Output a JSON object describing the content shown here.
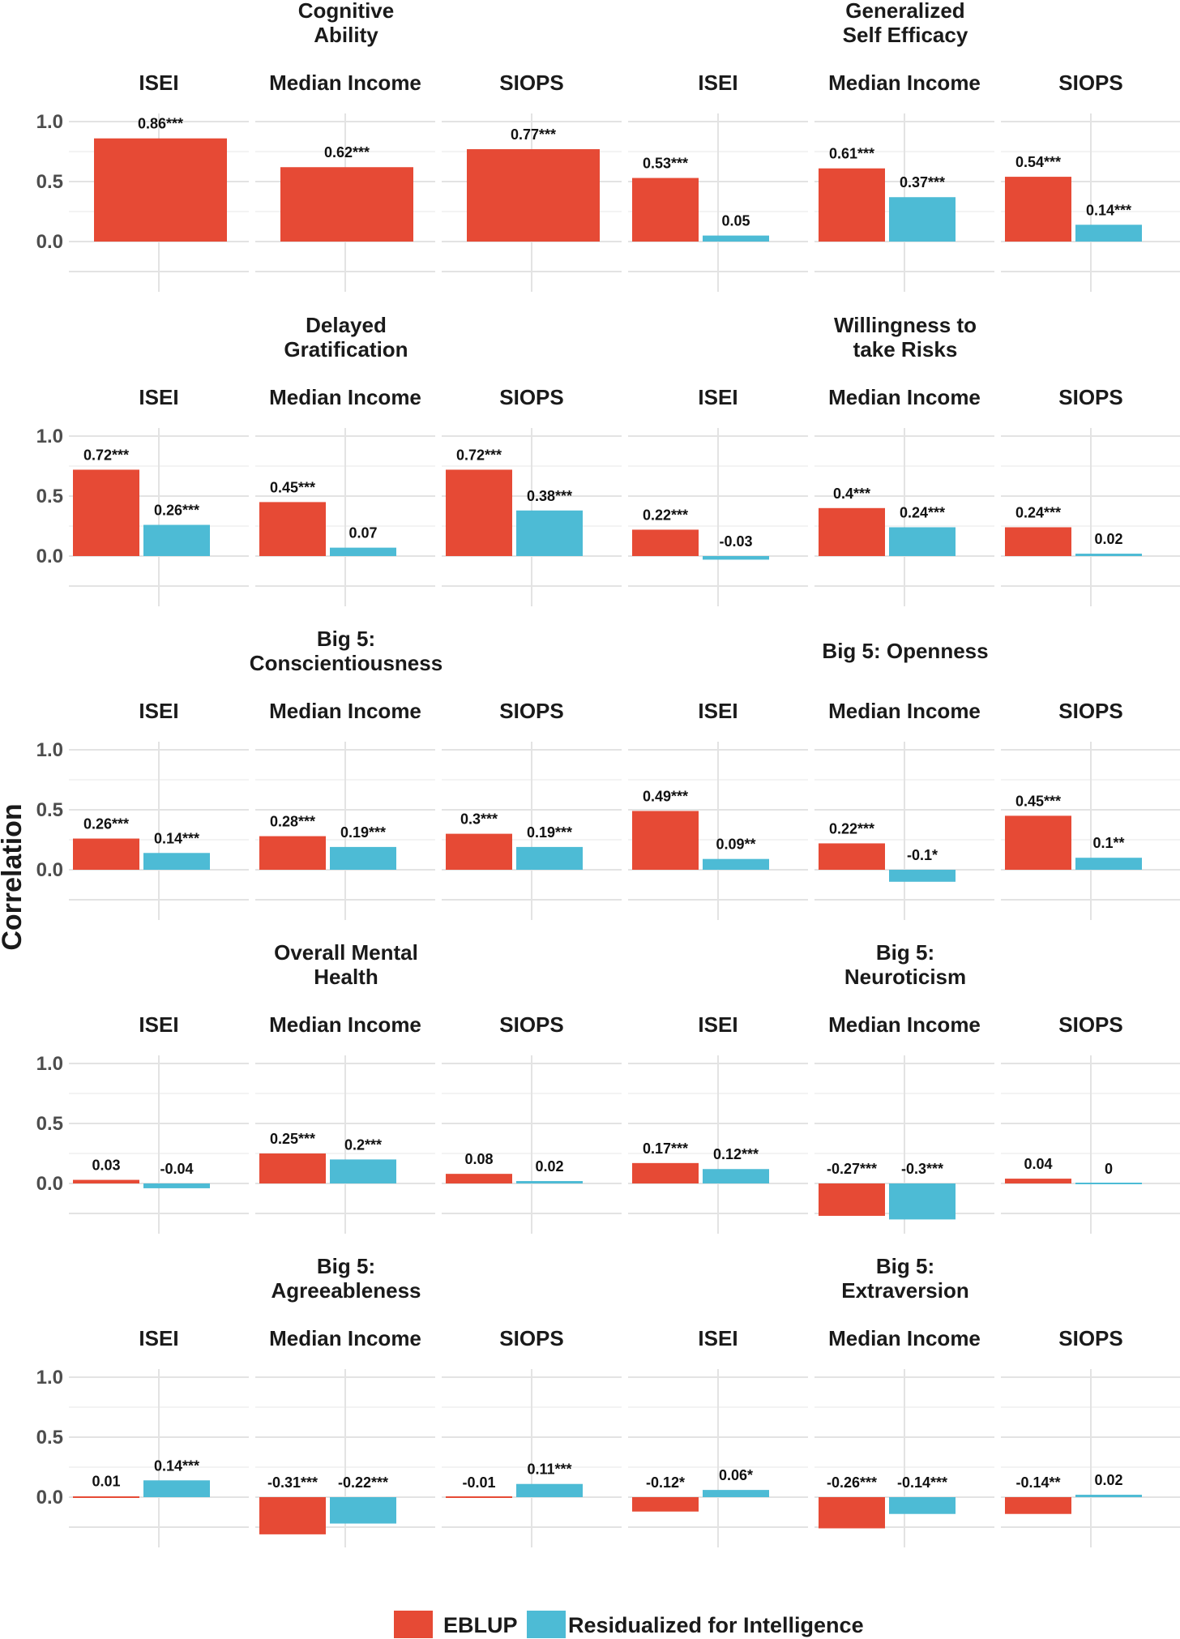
{
  "chart_data": {
    "type": "bar",
    "ylabel": "Correlation",
    "ylim": [
      -0.25,
      1.0
    ],
    "yticks": [
      "0.0",
      "0.5",
      "1.0"
    ],
    "grid": true,
    "legend": {
      "position": "bottom",
      "entries": [
        {
          "name": "EBLUP",
          "color": "#E64A35"
        },
        {
          "name": "Residualized for Intelligence",
          "color": "#4DBBD5"
        }
      ]
    },
    "colors": {
      "EBLUP": "#E64A35",
      "Residualized": "#4DBBD5"
    },
    "subpanels": [
      "ISEI",
      "Median Income",
      "SIOPS"
    ],
    "panels": [
      {
        "title": [
          "Cognitive",
          "Ability"
        ],
        "eblup": [
          0.86,
          0.62,
          0.77
        ],
        "eblup_labels": [
          "0.86***",
          "0.62***",
          "0.77***"
        ],
        "resid": null,
        "resid_labels": null
      },
      {
        "title": [
          "Generalized",
          "Self Efficacy"
        ],
        "eblup": [
          0.53,
          0.61,
          0.54
        ],
        "eblup_labels": [
          "0.53***",
          "0.61***",
          "0.54***"
        ],
        "resid": [
          0.05,
          0.37,
          0.14
        ],
        "resid_labels": [
          "0.05",
          "0.37***",
          "0.14***"
        ]
      },
      {
        "title": [
          "Delayed",
          "Gratification"
        ],
        "eblup": [
          0.72,
          0.45,
          0.72
        ],
        "eblup_labels": [
          "0.72***",
          "0.45***",
          "0.72***"
        ],
        "resid": [
          0.26,
          0.07,
          0.38
        ],
        "resid_labels": [
          "0.26***",
          "0.07",
          "0.38***"
        ]
      },
      {
        "title": [
          "Willingness to",
          "take Risks"
        ],
        "eblup": [
          0.22,
          0.4,
          0.24
        ],
        "eblup_labels": [
          "0.22***",
          "0.4***",
          "0.24***"
        ],
        "resid": [
          -0.03,
          0.24,
          0.02
        ],
        "resid_labels": [
          "-0.03",
          "0.24***",
          "0.02"
        ]
      },
      {
        "title": [
          "Big 5:",
          "Conscientiousness"
        ],
        "eblup": [
          0.26,
          0.28,
          0.3
        ],
        "eblup_labels": [
          "0.26***",
          "0.28***",
          "0.3***"
        ],
        "resid": [
          0.14,
          0.19,
          0.19
        ],
        "resid_labels": [
          "0.14***",
          "0.19***",
          "0.19***"
        ]
      },
      {
        "title": [
          "Big 5: Openness"
        ],
        "eblup": [
          0.49,
          0.22,
          0.45
        ],
        "eblup_labels": [
          "0.49***",
          "0.22***",
          "0.45***"
        ],
        "resid": [
          0.09,
          -0.1,
          0.1
        ],
        "resid_labels": [
          "0.09**",
          "-0.1*",
          "0.1**"
        ]
      },
      {
        "title": [
          "Overall Mental",
          "Health"
        ],
        "eblup": [
          0.03,
          0.25,
          0.08
        ],
        "eblup_labels": [
          "0.03",
          "0.25***",
          "0.08"
        ],
        "resid": [
          -0.04,
          0.2,
          0.02
        ],
        "resid_labels": [
          "-0.04",
          "0.2***",
          "0.02"
        ]
      },
      {
        "title": [
          "Big 5:",
          "Neuroticism"
        ],
        "eblup": [
          0.17,
          -0.27,
          0.04
        ],
        "eblup_labels": [
          "0.17***",
          "-0.27***",
          "0.04"
        ],
        "resid": [
          0.12,
          -0.3,
          0.0
        ],
        "resid_labels": [
          "0.12***",
          "-0.3***",
          "0"
        ]
      },
      {
        "title": [
          "Big 5:",
          "Agreeableness"
        ],
        "eblup": [
          0.01,
          -0.31,
          -0.01
        ],
        "eblup_labels": [
          "0.01",
          "-0.31***",
          "-0.01"
        ],
        "resid": [
          0.14,
          -0.22,
          0.11
        ],
        "resid_labels": [
          "0.14***",
          "-0.22***",
          "0.11***"
        ]
      },
      {
        "title": [
          "Big 5:",
          "Extraversion"
        ],
        "eblup": [
          -0.12,
          -0.26,
          -0.14
        ],
        "eblup_labels": [
          "-0.12*",
          "-0.26***",
          "-0.14**"
        ],
        "resid": [
          0.06,
          -0.14,
          0.02
        ],
        "resid_labels": [
          "0.06*",
          "-0.14***",
          "0.02"
        ]
      }
    ]
  }
}
